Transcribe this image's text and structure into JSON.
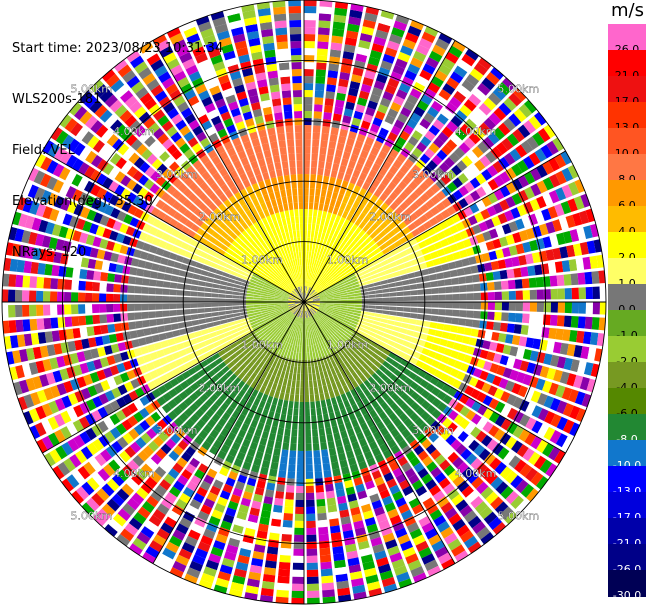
{
  "header": {
    "start_time": "Start time: 2023/08/23 10:31:34",
    "instrument": "WLS200s-181",
    "field": "Field: VEL",
    "elevation": "Elevation(deg): 35.30",
    "nrays": "NRays: 120"
  },
  "colorbar": {
    "unit": "m/s",
    "levels": [
      "26.0",
      "21.0",
      "17.0",
      "13.0",
      "10.0",
      "8.0",
      "6.0",
      "4.0",
      "2.0",
      "1.0",
      "0.0",
      "-1.0",
      "-2.0",
      "-4.0",
      "-6.0",
      "-8.0",
      "-10.0",
      "-13.0",
      "-17.0",
      "-21.0",
      "-26.0",
      "-30.0"
    ],
    "colors": [
      "#ff66cc",
      "#ff0000",
      "#ee1111",
      "#ff3300",
      "#ff5522",
      "#ff7744",
      "#ff9900",
      "#ffbb00",
      "#ffff00",
      "#ffff66",
      "#777777",
      "#66aa22",
      "#99cc33",
      "#779922",
      "#558800",
      "#228833",
      "#1177cc",
      "#0000ff",
      "#0000dd",
      "#0000aa",
      "#000088",
      "#000055"
    ]
  },
  "chart_data": {
    "type": "ppi",
    "field": "VEL",
    "units": "m/s",
    "nrays": 120,
    "elevation_deg": 35.3,
    "range_rings_km": [
      1.0,
      2.0,
      3.0,
      4.0,
      5.0
    ],
    "ring_labels": [
      "1.00km",
      "2.00km",
      "3.00km",
      "4.00km",
      "5.00km"
    ],
    "max_range_km": 5.0,
    "azimuth_lines_deg": [
      0,
      30,
      60,
      90,
      120,
      150,
      180,
      210,
      240,
      270,
      300,
      330
    ],
    "velocity_range": [
      -30.0,
      26.0
    ]
  }
}
